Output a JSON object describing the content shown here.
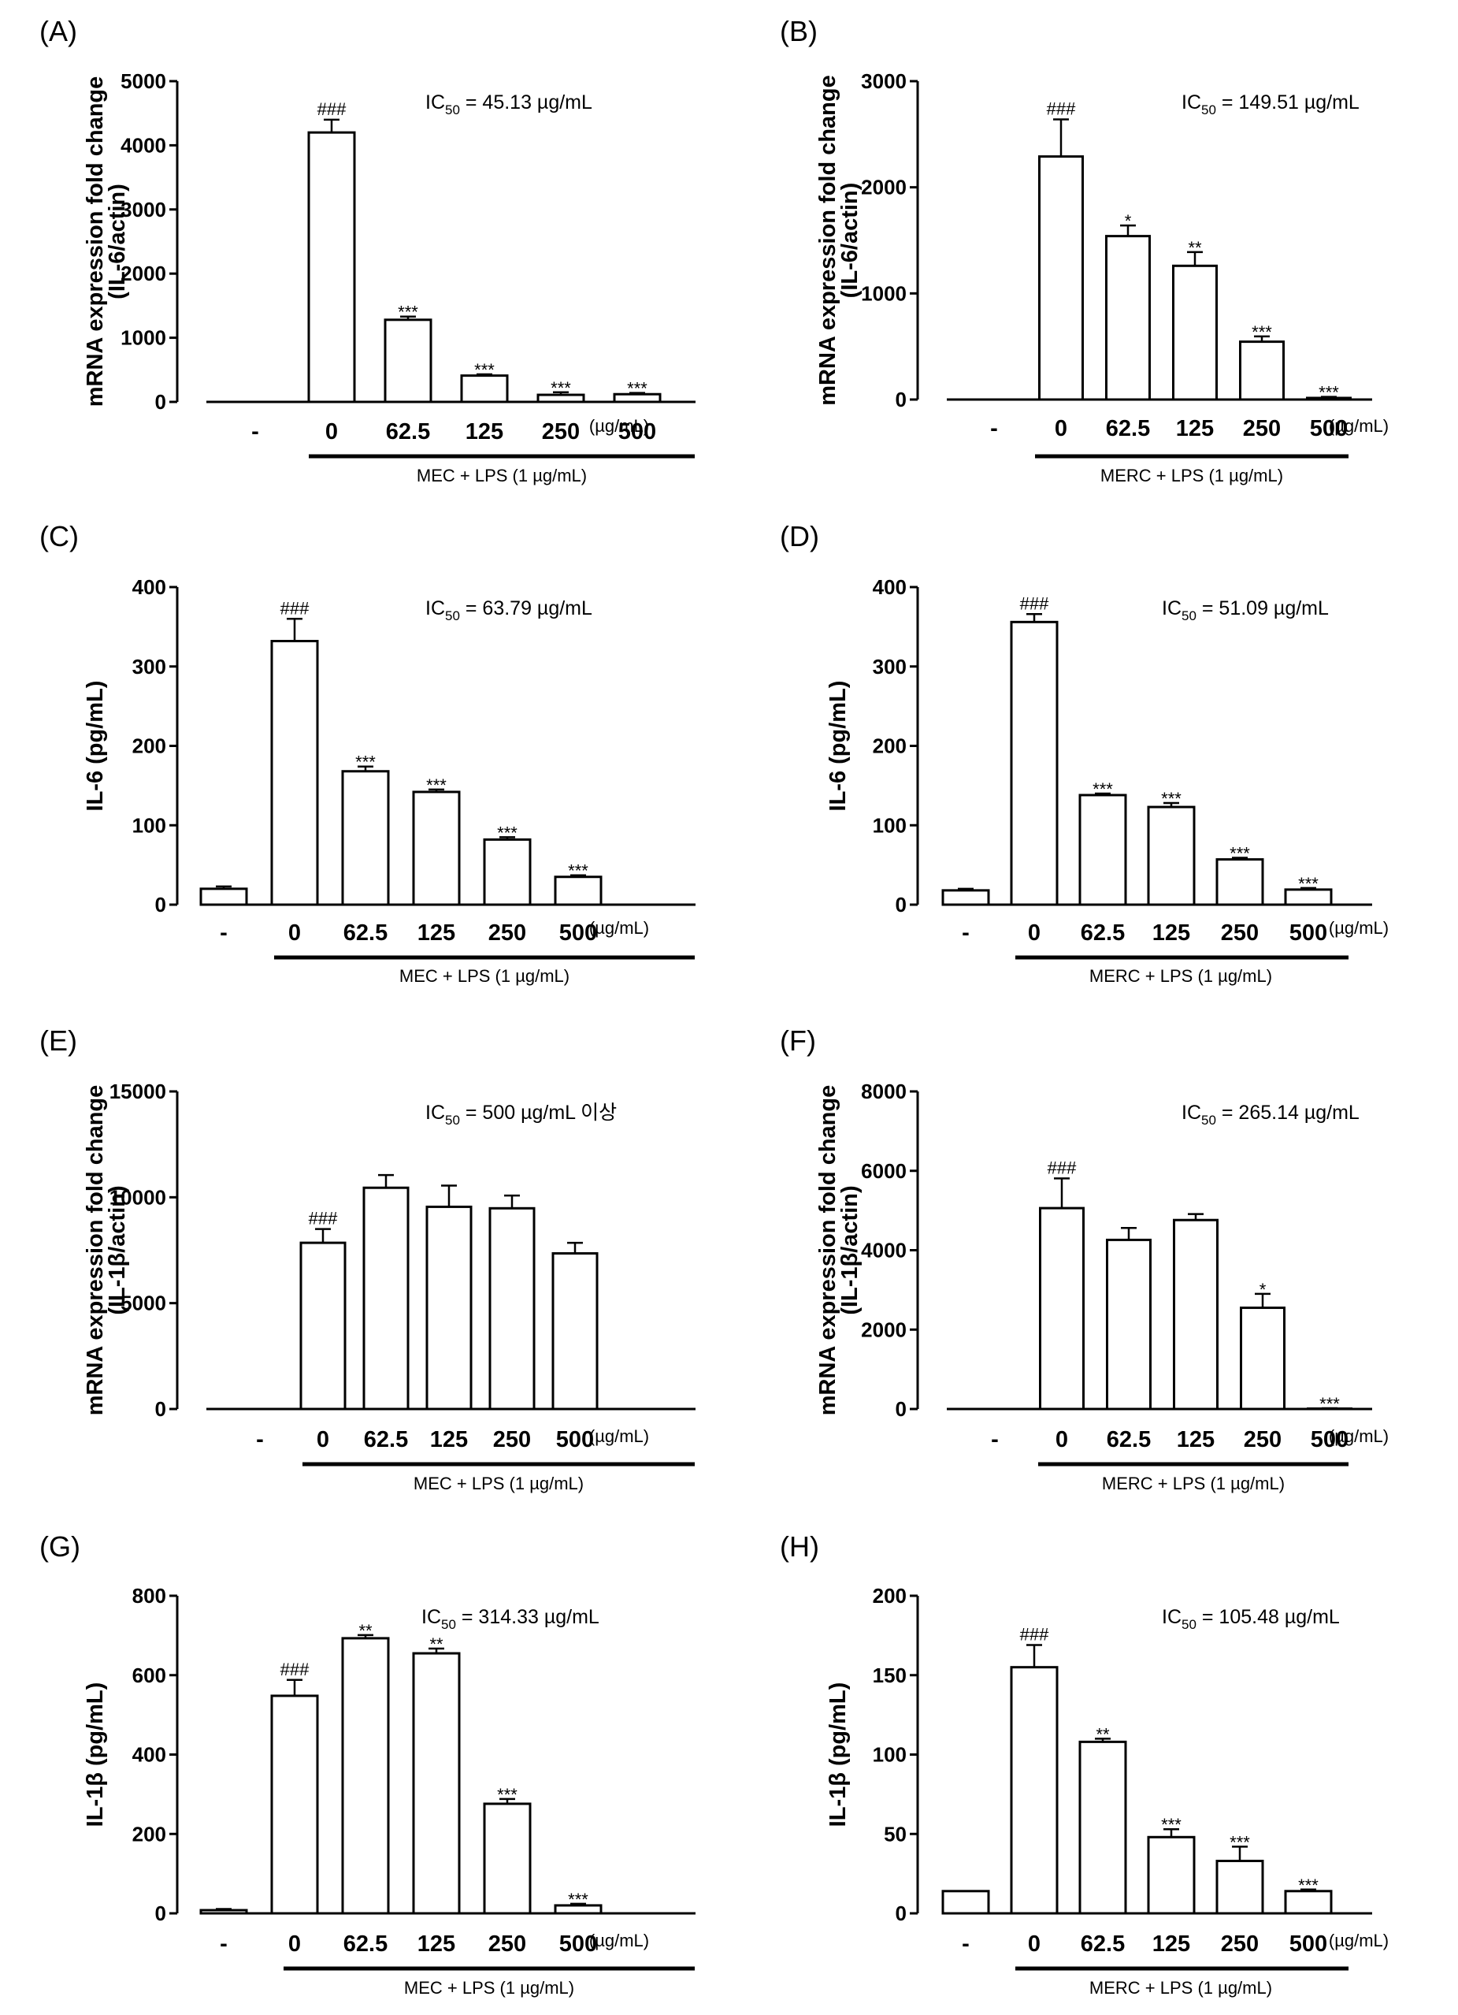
{
  "chart_data": [
    {
      "panel": "(A)",
      "type": "bar",
      "ylabel_lines": [
        "mRNA expression fold change",
        "(IL-6/actin)"
      ],
      "ylim": [
        0,
        5000
      ],
      "yticks": [
        0,
        1000,
        2000,
        3000,
        4000,
        5000
      ],
      "categories": [
        "-",
        "0",
        "62.5",
        "125",
        "250",
        "500"
      ],
      "unit": "(µg/mL)",
      "treatment": "MEC  + LPS (1 µg/mL)",
      "ic50_prefix": "IC",
      "ic50_sub": "50",
      "ic50_value": " = 45.13 µg/mL",
      "values": [
        0,
        4200,
        1280,
        410,
        110,
        120
      ],
      "errors": [
        0,
        200,
        50,
        20,
        40,
        20
      ],
      "annotations": [
        "",
        "###",
        "***",
        "***",
        "***",
        "***"
      ]
    },
    {
      "panel": "(B)",
      "type": "bar",
      "ylabel_lines": [
        "mRNA expression fold change",
        "(IL-6/actin)"
      ],
      "ylim": [
        0,
        3000
      ],
      "yticks": [
        0,
        1000,
        2000,
        3000
      ],
      "categories": [
        "-",
        "0",
        "62.5",
        "125",
        "250",
        "500"
      ],
      "unit": "(µg/mL)",
      "treatment": "MERC + LPS (1 µg/mL)",
      "ic50_prefix": "IC",
      "ic50_sub": "50",
      "ic50_value": " = 149.51 µg/mL",
      "values": [
        0,
        2290,
        1540,
        1260,
        545,
        15
      ],
      "errors": [
        0,
        350,
        100,
        130,
        50,
        10
      ],
      "annotations": [
        "",
        "###",
        "*",
        "**",
        "***",
        "***"
      ]
    },
    {
      "panel": "(C)",
      "type": "bar",
      "ylabel_lines": [
        "IL-6 (pg/mL)"
      ],
      "ylim": [
        0,
        400
      ],
      "yticks": [
        0,
        100,
        200,
        300,
        400
      ],
      "categories": [
        "-",
        "0",
        "62.5",
        "125",
        "250",
        "500"
      ],
      "unit": "(µg/mL)",
      "treatment": "MEC  + LPS (1 µg/mL)",
      "ic50_prefix": "IC",
      "ic50_sub": "50",
      "ic50_value": " = 63.79 µg/mL",
      "values": [
        20,
        332,
        168,
        142,
        82,
        35
      ],
      "errors": [
        3,
        28,
        6,
        3,
        3,
        2
      ],
      "annotations": [
        "",
        "###",
        "***",
        "***",
        "***",
        "***"
      ]
    },
    {
      "panel": "(D)",
      "type": "bar",
      "ylabel_lines": [
        "IL-6 (pg/mL)"
      ],
      "ylim": [
        0,
        400
      ],
      "yticks": [
        0,
        100,
        200,
        300,
        400
      ],
      "categories": [
        "-",
        "0",
        "62.5",
        "125",
        "250",
        "500"
      ],
      "unit": "(µg/mL)",
      "treatment": "MERC + LPS (1 µg/mL)",
      "ic50_prefix": "IC",
      "ic50_sub": "50",
      "ic50_value": " = 51.09 µg/mL",
      "values": [
        18,
        356,
        138,
        123,
        57,
        19
      ],
      "errors": [
        2,
        10,
        2,
        5,
        2,
        2
      ],
      "annotations": [
        "",
        "###",
        "***",
        "***",
        "***",
        "***"
      ]
    },
    {
      "panel": "(E)",
      "type": "bar",
      "ylabel_lines": [
        "mRNA expression fold change",
        "(IL-1β/actin)"
      ],
      "ylim": [
        0,
        15000
      ],
      "yticks": [
        0,
        5000,
        10000,
        15000
      ],
      "categories": [
        "-",
        "0",
        "62.5",
        "125",
        "250",
        "500"
      ],
      "unit": "(µg/mL)",
      "treatment": "MEC  + LPS (1 µg/mL)",
      "ic50_prefix": "IC",
      "ic50_sub": "50",
      "ic50_value": " = 500 µg/mL 이상",
      "values": [
        0,
        7850,
        10450,
        9550,
        9480,
        7350
      ],
      "errors": [
        0,
        650,
        600,
        1000,
        600,
        500
      ],
      "annotations": [
        "",
        "###",
        "",
        "",
        "",
        ""
      ]
    },
    {
      "panel": "(F)",
      "type": "bar",
      "ylabel_lines": [
        "mRNA expression fold change",
        "(IL-1β/actin)"
      ],
      "ylim": [
        0,
        8000
      ],
      "yticks": [
        0,
        2000,
        4000,
        6000,
        8000
      ],
      "categories": [
        "-",
        "0",
        "62.5",
        "125",
        "250",
        "500"
      ],
      "unit": "(µg/mL)",
      "treatment": "MERC + LPS (1 µg/mL)",
      "ic50_prefix": "IC",
      "ic50_sub": "50",
      "ic50_value": " = 265.14 µg/mL",
      "values": [
        0,
        5060,
        4260,
        4760,
        2550,
        10
      ],
      "errors": [
        0,
        750,
        300,
        150,
        350,
        10
      ],
      "annotations": [
        "",
        "###",
        "",
        "",
        "*",
        "***"
      ]
    },
    {
      "panel": "(G)",
      "type": "bar",
      "ylabel_lines": [
        "IL-1β (pg/mL)"
      ],
      "ylim": [
        0,
        800
      ],
      "yticks": [
        0,
        200,
        400,
        600,
        800
      ],
      "categories": [
        "-",
        "0",
        "62.5",
        "125",
        "250",
        "500"
      ],
      "unit": "(µg/mL)",
      "treatment": "MEC  + LPS (1 µg/mL)",
      "ic50_prefix": "IC",
      "ic50_sub": "50",
      "ic50_value": " = 314.33 µg/mL",
      "values": [
        8,
        548,
        693,
        655,
        276,
        20
      ],
      "errors": [
        3,
        40,
        8,
        12,
        12,
        4
      ],
      "annotations": [
        "",
        "###",
        "**",
        "**",
        "***",
        "***"
      ]
    },
    {
      "panel": "(H)",
      "type": "bar",
      "ylabel_lines": [
        "IL-1β (pg/mL)"
      ],
      "ylim": [
        0,
        200
      ],
      "yticks": [
        0,
        50,
        100,
        150,
        200
      ],
      "categories": [
        "-",
        "0",
        "62.5",
        "125",
        "250",
        "500"
      ],
      "unit": "(µg/mL)",
      "treatment": "MERC + LPS (1 µg/mL)",
      "ic50_prefix": "IC",
      "ic50_sub": "50",
      "ic50_value": " = 105.48 µg/mL",
      "values": [
        14,
        155,
        108,
        48,
        33,
        14
      ],
      "errors": [
        0,
        14,
        2,
        5,
        9,
        1
      ],
      "annotations": [
        "",
        "###",
        "**",
        "***",
        "***",
        "***"
      ]
    }
  ]
}
